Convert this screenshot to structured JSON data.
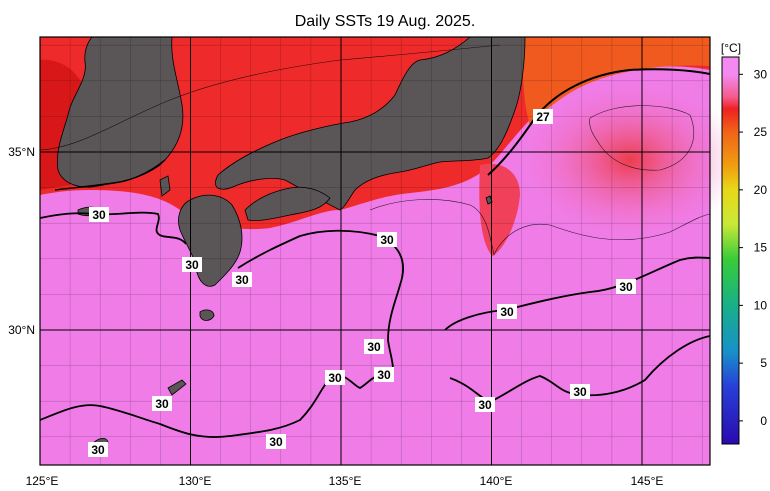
{
  "title": "Daily SSTs 19 Aug. 2025.",
  "colorbar": {
    "unit": "[°C]",
    "ticks": [
      "30",
      "25",
      "20",
      "15",
      "10",
      "5",
      "0"
    ],
    "stops": [
      {
        "v": 30,
        "color": "#f28af2"
      },
      {
        "v": 28,
        "color": "#f55a8a"
      },
      {
        "v": 27,
        "color": "#ee2222"
      },
      {
        "v": 25,
        "color": "#f06418"
      },
      {
        "v": 22,
        "color": "#f0a010"
      },
      {
        "v": 20,
        "color": "#e8d818"
      },
      {
        "v": 17,
        "color": "#c8e838"
      },
      {
        "v": 14,
        "color": "#38cc38"
      },
      {
        "v": 10,
        "color": "#18b088"
      },
      {
        "v": 6,
        "color": "#1890c8"
      },
      {
        "v": 3,
        "color": "#2840d8"
      },
      {
        "v": -2,
        "color": "#2a0ab0"
      }
    ]
  },
  "axes": {
    "lon_labels": [
      "125°E",
      "130°E",
      "135°E",
      "140°E",
      "145°E"
    ],
    "lat_labels": [
      "35°N",
      "30°N"
    ]
  },
  "contour_labels": [
    "30",
    "30",
    "30",
    "30",
    "30",
    "30",
    "30",
    "30",
    "30",
    "30",
    "30",
    "30",
    "30",
    "27"
  ],
  "colors": {
    "land": "#5a5556",
    "warm_sea": "#f07ce8",
    "hot_sea": "#ee2a2a",
    "grid": "#000000"
  }
}
